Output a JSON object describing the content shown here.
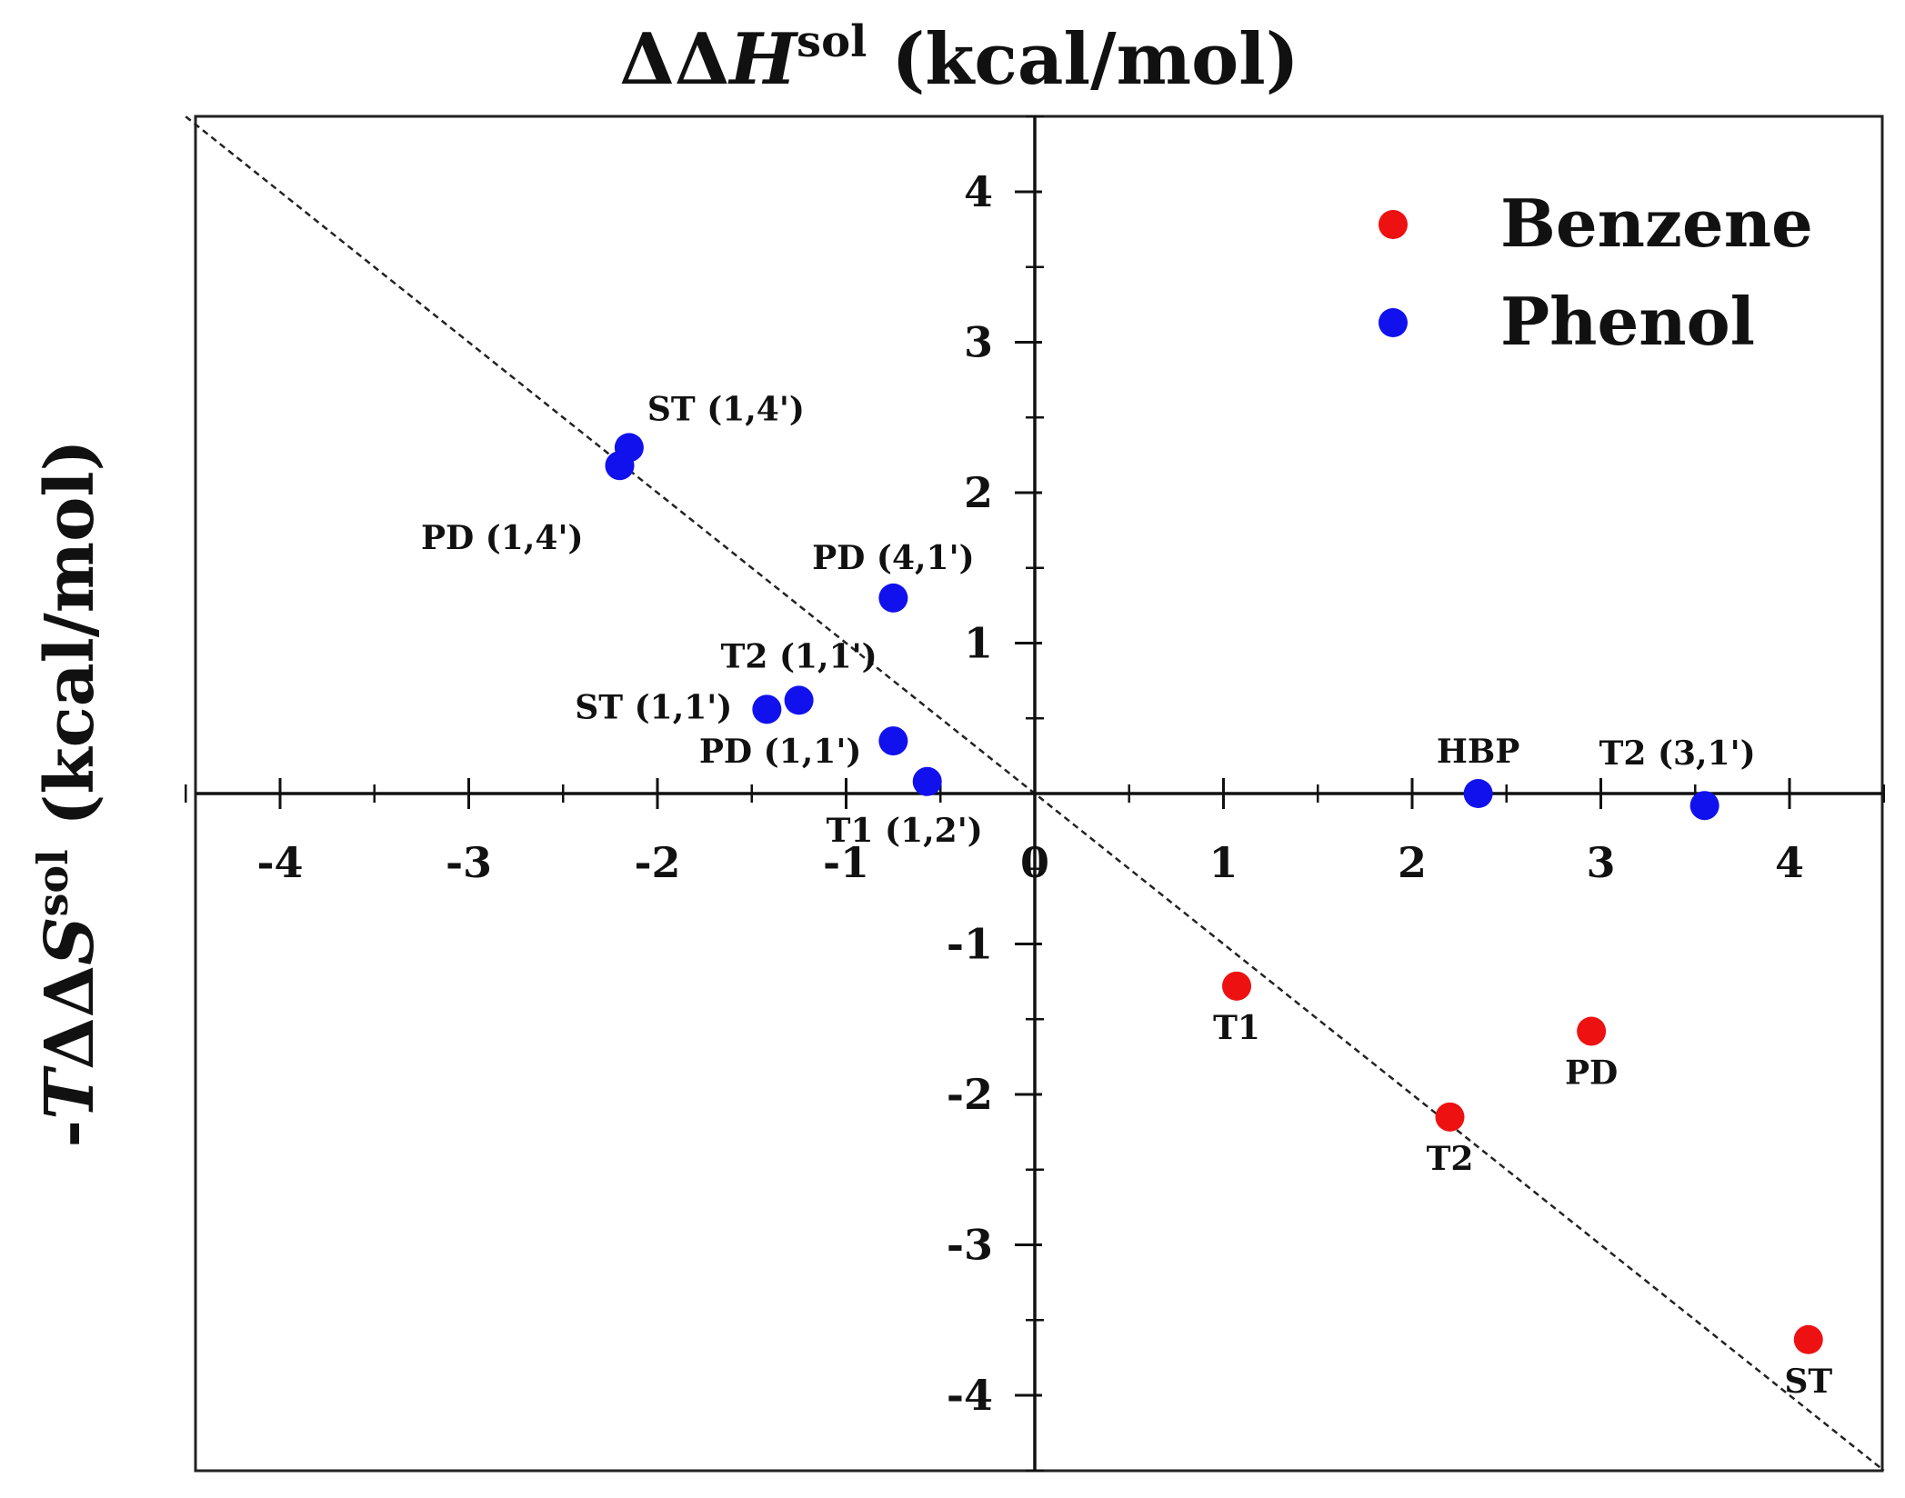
{
  "chart_data": {
    "type": "scatter",
    "xlabel": {
      "prefix": "ΔΔ",
      "var": "H",
      "sup": "sol",
      "unit": " (kcal/mol)"
    },
    "ylabel": {
      "prefix": "-",
      "var": "T",
      "mid": "ΔΔ",
      "var2": "S",
      "sup": "sol",
      "unit": " (kcal/mol)"
    },
    "xlim": [
      -4.5,
      4.5
    ],
    "ylim": [
      -4.5,
      4.5
    ],
    "x_ticks": [
      -4,
      -3,
      -2,
      -1,
      0,
      1,
      2,
      3,
      4
    ],
    "y_ticks": [
      -4,
      -3,
      -2,
      -1,
      0,
      1,
      2,
      3,
      4
    ],
    "x_tick_labels": [
      "-4",
      "-3",
      "-2",
      "-1",
      "0",
      "1",
      "2",
      "3",
      "4"
    ],
    "y_tick_labels": [
      "-4",
      "-3",
      "-2",
      "-1",
      "0",
      "1",
      "2",
      "3",
      "4"
    ],
    "reference_line": {
      "style": "dashed",
      "slope": -1,
      "intercept": 0
    },
    "legend": {
      "placement": "top-right"
    },
    "series": [
      {
        "name": "Benzene",
        "color": "#ee1111",
        "points": [
          {
            "label": "T1",
            "x": 1.07,
            "y": -1.28,
            "label_pos": "below"
          },
          {
            "label": "PD",
            "x": 2.95,
            "y": -1.58,
            "label_pos": "below"
          },
          {
            "label": "T2",
            "x": 2.2,
            "y": -2.15,
            "label_pos": "below"
          },
          {
            "label": "ST",
            "x": 4.1,
            "y": -3.63,
            "label_pos": "below"
          }
        ]
      },
      {
        "name": "Phenol",
        "color": "#1111ee",
        "points": [
          {
            "label": "ST (1,4')",
            "x": -2.15,
            "y": 2.3,
            "label_pos": "above-right"
          },
          {
            "label": "PD (1,4')",
            "x": -2.2,
            "y": 2.18,
            "label_pos": "below-left"
          },
          {
            "label": "PD (4,1')",
            "x": -0.75,
            "y": 1.3,
            "label_pos": "above"
          },
          {
            "label": "T2 (1,1')",
            "x": -1.25,
            "y": 0.62,
            "label_pos": "above"
          },
          {
            "label": "ST (1,1')",
            "x": -1.42,
            "y": 0.56,
            "label_pos": "left"
          },
          {
            "label": "PD (1,1')",
            "x": -0.75,
            "y": 0.35,
            "label_pos": "below-left"
          },
          {
            "label": "T1 (1,2')",
            "x": -0.57,
            "y": 0.08,
            "label_pos": "below"
          },
          {
            "label": "HBP",
            "x": 2.35,
            "y": 0.0,
            "label_pos": "above"
          },
          {
            "label": "T2 (3,1')",
            "x": 3.55,
            "y": -0.08,
            "label_pos": "above-left"
          }
        ]
      }
    ]
  }
}
